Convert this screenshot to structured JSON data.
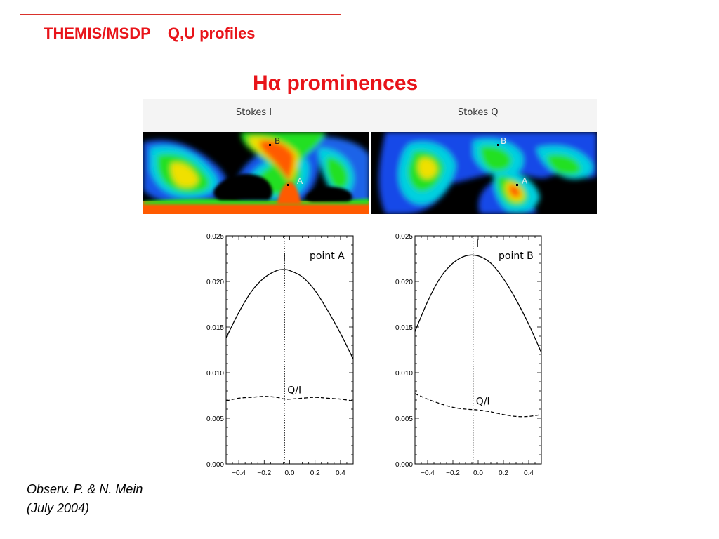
{
  "title": {
    "instrument": "THEMIS/MSDP",
    "topic": "Q,U profiles"
  },
  "subtitle": {
    "prefix": "H",
    "alpha": "α",
    "rest": " prominences"
  },
  "maps": [
    {
      "label": "Stokes I",
      "points": [
        "B",
        "A"
      ]
    },
    {
      "label": "Stokes Q",
      "points": [
        "B",
        "A"
      ]
    }
  ],
  "colors": {
    "accent": "#e8141a",
    "map_bg": "#000000",
    "curve": "#000000"
  },
  "chart_data": [
    {
      "type": "line",
      "title": "point A",
      "xlim": [
        -0.5,
        0.5
      ],
      "ylim": [
        0.0,
        0.025
      ],
      "xticks": [
        -0.4,
        -0.2,
        0.0,
        0.2,
        0.4
      ],
      "yticks": [
        0.0,
        0.005,
        0.01,
        0.015,
        0.02,
        0.025
      ],
      "xtick_labels": [
        "−0.4",
        "−0.2",
        "0.0",
        "0.2",
        "0.4"
      ],
      "ytick_labels": [
        "0.000",
        "0.005",
        "0.010",
        "0.015",
        "0.020",
        "0.025"
      ],
      "center_line_x": -0.04,
      "series": [
        {
          "name": "I",
          "style": "solid",
          "x": [
            -0.5,
            -0.4,
            -0.3,
            -0.2,
            -0.1,
            -0.04,
            0.0,
            0.1,
            0.2,
            0.3,
            0.4,
            0.5
          ],
          "y": [
            0.0138,
            0.0166,
            0.0189,
            0.0204,
            0.0212,
            0.0213,
            0.0212,
            0.0205,
            0.019,
            0.0168,
            0.0143,
            0.0115
          ]
        },
        {
          "name": "Q/I",
          "style": "dashed",
          "x": [
            -0.5,
            -0.4,
            -0.3,
            -0.2,
            -0.1,
            -0.04,
            0.0,
            0.1,
            0.2,
            0.3,
            0.4,
            0.5
          ],
          "y": [
            0.0069,
            0.0072,
            0.0073,
            0.0074,
            0.0073,
            0.0071,
            0.0071,
            0.0072,
            0.0073,
            0.0072,
            0.0071,
            0.0069
          ]
        }
      ]
    },
    {
      "type": "line",
      "title": "point B",
      "xlim": [
        -0.5,
        0.5
      ],
      "ylim": [
        0.0,
        0.025
      ],
      "xticks": [
        -0.4,
        -0.2,
        0.0,
        0.2,
        0.4
      ],
      "yticks": [
        0.0,
        0.005,
        0.01,
        0.015,
        0.02,
        0.025
      ],
      "xtick_labels": [
        "−0.4",
        "−0.2",
        "0.0",
        "0.2",
        "0.4"
      ],
      "ytick_labels": [
        "0.000",
        "0.005",
        "0.010",
        "0.015",
        "0.020",
        "0.025"
      ],
      "center_line_x": -0.04,
      "series": [
        {
          "name": "I",
          "style": "solid",
          "x": [
            -0.5,
            -0.4,
            -0.3,
            -0.2,
            -0.1,
            0.0,
            0.1,
            0.2,
            0.3,
            0.4,
            0.5
          ],
          "y": [
            0.0145,
            0.0178,
            0.0204,
            0.022,
            0.0228,
            0.0228,
            0.022,
            0.0203,
            0.018,
            0.0153,
            0.0122
          ]
        },
        {
          "name": "Q/I",
          "style": "dashed",
          "x": [
            -0.5,
            -0.4,
            -0.3,
            -0.2,
            -0.1,
            0.0,
            0.1,
            0.2,
            0.3,
            0.4,
            0.5
          ],
          "y": [
            0.0077,
            0.0071,
            0.0066,
            0.0062,
            0.006,
            0.0059,
            0.0057,
            0.0054,
            0.0052,
            0.0052,
            0.0054
          ]
        }
      ]
    }
  ],
  "caption": {
    "line1": "Observ. P. & N. Mein",
    "line2": "(July 2004)"
  }
}
